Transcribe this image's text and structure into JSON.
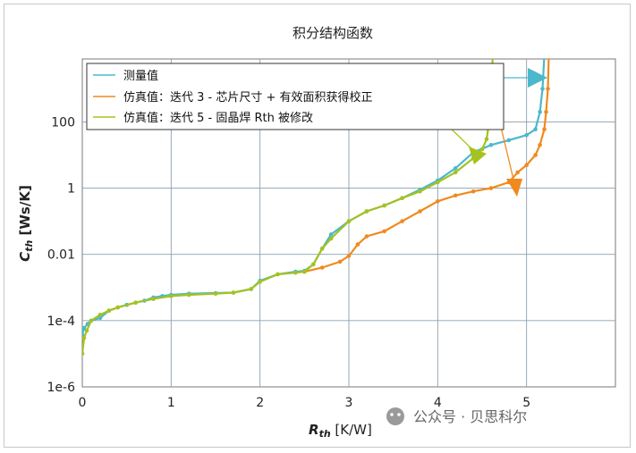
{
  "chart_data": {
    "type": "line",
    "title": "积分结构函数",
    "xlabel": "R_th [K/W]",
    "xlabel_main": "R",
    "xlabel_sub": "th",
    "xlabel_unit": " [K/W]",
    "ylabel": "C_th [Ws/K]",
    "ylabel_main": "C",
    "ylabel_sub": "th",
    "ylabel_unit": " [Ws/K]",
    "xlim": [
      0,
      6
    ],
    "ylim_log10": [
      -6,
      3.9
    ],
    "yscale": "log",
    "grid": true,
    "legend_position": "top-left",
    "x_ticks": [
      "0",
      "1",
      "2",
      "3",
      "4",
      "5"
    ],
    "y_ticks": [
      "100",
      "1",
      "0.01",
      "1e-4",
      "1e-6"
    ],
    "series": [
      {
        "name": "测量值",
        "color": "#4bb8cc",
        "points": [
          [
            0,
            3.7e-05
          ],
          [
            0.02,
            6e-05
          ],
          [
            0.06,
            8e-05
          ],
          [
            0.1,
            0.0001
          ],
          [
            0.2,
            0.00012
          ],
          [
            0.3,
            0.0002
          ],
          [
            0.4,
            0.00025
          ],
          [
            0.5,
            0.0003
          ],
          [
            0.6,
            0.00035
          ],
          [
            0.7,
            0.0004
          ],
          [
            0.8,
            0.0005
          ],
          [
            0.9,
            0.00055
          ],
          [
            1.0,
            0.0006
          ],
          [
            1.2,
            0.00065
          ],
          [
            1.5,
            0.00068
          ],
          [
            1.7,
            0.0007
          ],
          [
            1.9,
            0.0009
          ],
          [
            2.0,
            0.0016
          ],
          [
            2.2,
            0.0025
          ],
          [
            2.4,
            0.003
          ],
          [
            2.5,
            0.0032
          ],
          [
            2.6,
            0.005
          ],
          [
            2.7,
            0.015
          ],
          [
            2.8,
            0.04
          ],
          [
            3.0,
            0.1
          ],
          [
            3.2,
            0.2
          ],
          [
            3.4,
            0.3
          ],
          [
            3.6,
            0.5
          ],
          [
            3.8,
            0.9
          ],
          [
            4.0,
            1.7
          ],
          [
            4.2,
            4
          ],
          [
            4.4,
            12
          ],
          [
            4.6,
            20
          ],
          [
            4.8,
            28
          ],
          [
            5.0,
            40
          ],
          [
            5.1,
            60
          ],
          [
            5.15,
            200
          ],
          [
            5.18,
            1000.0
          ],
          [
            5.2,
            10000.0
          ],
          [
            5.22,
            100000.0
          ]
        ]
      },
      {
        "name": "仿真值：迭代 3 - 芯片尺寸 + 有效面积获得校正",
        "color": "#f08a1e",
        "points": [
          [
            2.5,
            0.003
          ],
          [
            2.7,
            0.004
          ],
          [
            2.9,
            0.006
          ],
          [
            3.0,
            0.009
          ],
          [
            3.1,
            0.02
          ],
          [
            3.2,
            0.035
          ],
          [
            3.4,
            0.05
          ],
          [
            3.6,
            0.1
          ],
          [
            3.8,
            0.2
          ],
          [
            4.0,
            0.4
          ],
          [
            4.2,
            0.6
          ],
          [
            4.4,
            0.8
          ],
          [
            4.6,
            1.0
          ],
          [
            4.8,
            1.5
          ],
          [
            4.9,
            3
          ],
          [
            5.0,
            5
          ],
          [
            5.1,
            10
          ],
          [
            5.15,
            20
          ],
          [
            5.2,
            60
          ],
          [
            5.22,
            200
          ],
          [
            5.24,
            1000.0
          ],
          [
            5.25,
            10000.0
          ],
          [
            5.26,
            100000.0
          ]
        ]
      },
      {
        "name": "仿真值：迭代 5 - 固晶焊 Rth 被修改",
        "color": "#a5c21f",
        "points": [
          [
            0,
            1e-05
          ],
          [
            0.02,
            3e-05
          ],
          [
            0.05,
            5e-05
          ],
          [
            0.1,
            0.0001
          ],
          [
            0.2,
            0.00015
          ],
          [
            0.3,
            0.0002
          ],
          [
            0.4,
            0.00025
          ],
          [
            0.6,
            0.00035
          ],
          [
            0.8,
            0.00045
          ],
          [
            1.0,
            0.00055
          ],
          [
            1.2,
            0.0006
          ],
          [
            1.5,
            0.00065
          ],
          [
            1.7,
            0.0007
          ],
          [
            1.9,
            0.0009
          ],
          [
            2.0,
            0.0015
          ],
          [
            2.2,
            0.0025
          ],
          [
            2.4,
            0.0028
          ],
          [
            2.5,
            0.003
          ],
          [
            2.6,
            0.005
          ],
          [
            2.7,
            0.015
          ],
          [
            2.8,
            0.03
          ],
          [
            3.0,
            0.1
          ],
          [
            3.2,
            0.2
          ],
          [
            3.4,
            0.3
          ],
          [
            3.6,
            0.5
          ],
          [
            3.8,
            0.8
          ],
          [
            4.0,
            1.5
          ],
          [
            4.2,
            3
          ],
          [
            4.4,
            8
          ],
          [
            4.5,
            15
          ],
          [
            4.55,
            30
          ],
          [
            4.58,
            100
          ],
          [
            4.6,
            1000.0
          ],
          [
            4.62,
            10000.0
          ],
          [
            4.63,
            100000.0
          ]
        ]
      }
    ]
  },
  "watermark": "公众号 · 贝思科尔"
}
